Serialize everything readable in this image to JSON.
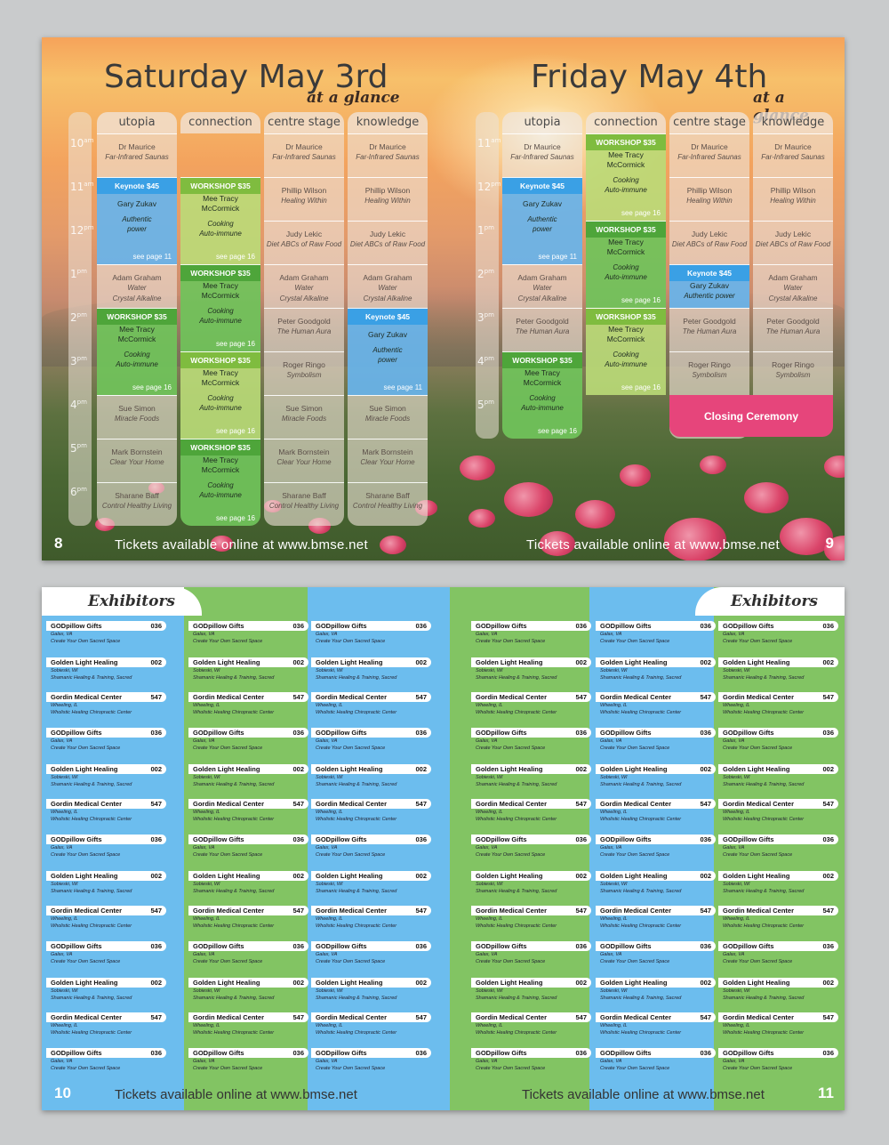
{
  "spread1": {
    "left_title": "Saturday May 3rd",
    "right_title": "Friday May 4th",
    "glance": "at a glance",
    "footer": "Tickets available online at www.bmse.net",
    "left_page": "8",
    "right_page": "9",
    "columns": [
      "utopia",
      "connection",
      "centre stage",
      "knowledge"
    ],
    "left_times": [
      {
        "h": "10",
        "s": "am"
      },
      {
        "h": "11",
        "s": "am"
      },
      {
        "h": "12",
        "s": "pm"
      },
      {
        "h": "1",
        "s": "pm"
      },
      {
        "h": "2",
        "s": "pm"
      },
      {
        "h": "3",
        "s": "pm"
      },
      {
        "h": "4",
        "s": "pm"
      },
      {
        "h": "5",
        "s": "pm"
      },
      {
        "h": "6",
        "s": "pm"
      }
    ],
    "right_times": [
      {
        "h": "11",
        "s": "am"
      },
      {
        "h": "12",
        "s": "pm"
      },
      {
        "h": "1",
        "s": "pm"
      },
      {
        "h": "2",
        "s": "pm"
      },
      {
        "h": "3",
        "s": "pm"
      },
      {
        "h": "4",
        "s": "pm"
      },
      {
        "h": "5",
        "s": "pm"
      }
    ],
    "people": {
      "maurice": {
        "name": "Dr Maurice",
        "topic": "Far-Infrared Saunas"
      },
      "phillip": {
        "name": "Phillip Wilson",
        "topic": "Healing Within"
      },
      "judy": {
        "name": "Judy Lekic",
        "topic": "Diet ABCs of Raw Food"
      },
      "adam": {
        "name": "Adam Graham",
        "topic1": "Water",
        "topic2": "Crystal Alkaline"
      },
      "peter": {
        "name": "Peter Goodgold",
        "topic": "The Human Aura"
      },
      "roger": {
        "name": "Roger Ringo",
        "topic": "Symbolism"
      },
      "sue": {
        "name": "Sue Simon",
        "topic": "Miracle Foods"
      },
      "mark": {
        "name": "Mark Bornstein",
        "topic": "Clear Your Home"
      },
      "sharane": {
        "name": "Sharane Baff",
        "topic": "Control Healthy Living"
      }
    },
    "keynote": {
      "head": "Keynote $45",
      "name": "Gary Zukav",
      "topic1": "Authentic",
      "topic2": "power",
      "topic_inline": "Authentic power",
      "see": "see page 11"
    },
    "workshop": {
      "head": "WORKSHOP $35",
      "name1": "Mee Tracy",
      "name2": "McCormick",
      "topic1": "Cooking",
      "topic2": "Auto-immune",
      "see": "see page 16"
    },
    "closing": "Closing Ceremony"
  },
  "spread2": {
    "title": "Exhibitors",
    "footer": "Tickets available online at www.bmse.net",
    "left_page": "10",
    "right_page": "11",
    "colors": {
      "blue": "#6cbdee",
      "green": "#82c463"
    },
    "entries": [
      {
        "name": "GODpillow Gifts",
        "num": "036",
        "loc": "Galax, VA",
        "desc": "Create Your Own Sacred Space"
      },
      {
        "name": "Golden Light Healing",
        "num": "002",
        "loc": "Sobieski, WI",
        "desc": "Shamanic Healing & Training, Sacred"
      },
      {
        "name": "Gordin Medical Center",
        "num": "547",
        "loc": "Wheeling, IL",
        "desc": "Wholistic Healing Chiropractic Center"
      }
    ]
  }
}
